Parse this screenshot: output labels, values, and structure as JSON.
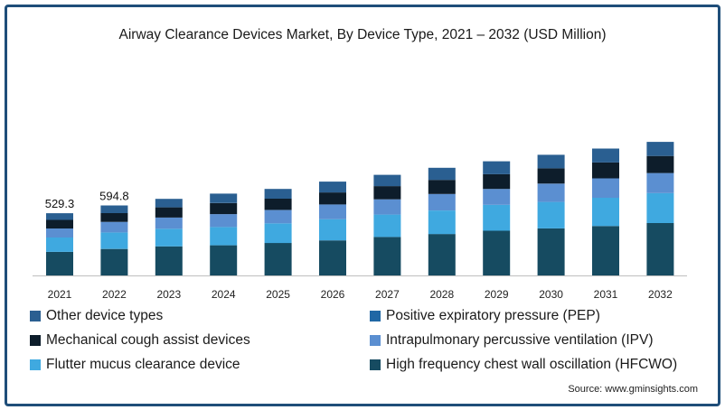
{
  "chart_data": {
    "type": "bar",
    "stacked": true,
    "title": "Airway Clearance Devices Market, By Device Type, 2021 – 2032 (USD Million)",
    "xlabel": "",
    "ylabel": "",
    "categories": [
      "2021",
      "2022",
      "2023",
      "2024",
      "2025",
      "2026",
      "2027",
      "2028",
      "2029",
      "2030",
      "2031",
      "2032"
    ],
    "totals_labels": [
      "529.3",
      "594.8"
    ],
    "ylim": [
      0,
      1650
    ],
    "legend_position": "bottom",
    "grid": false,
    "series": [
      {
        "name": "High frequency chest wall oscillation (HFCWO)",
        "color": "#164b61",
        "values": [
          200,
          225,
          247,
          256,
          276,
          298,
          327,
          352,
          380,
          400,
          420,
          445
        ]
      },
      {
        "name": "Flutter mucus clearance device",
        "color": "#3fa9e0",
        "values": [
          122,
          140,
          150,
          155,
          167,
          180,
          190,
          200,
          220,
          225,
          240,
          255
        ]
      },
      {
        "name": "Intrapulmonary percussive ventilation (IPV)",
        "color": "#5b8fd1",
        "values": [
          77,
          90,
          95,
          110,
          113,
          125,
          130,
          140,
          135,
          155,
          165,
          170
        ]
      },
      {
        "name": "Mechanical cough assist devices",
        "color": "#0d1d2b",
        "values": [
          73,
          75,
          87,
          94,
          96,
          102,
          112,
          120,
          125,
          130,
          135,
          145
        ]
      },
      {
        "name": "Positive expiratory pressure (PEP)",
        "color": "#2067a5",
        "values": [
          0,
          0,
          0,
          0,
          0,
          0,
          0,
          0,
          0,
          0,
          0,
          0
        ]
      },
      {
        "name": "Other device types",
        "color": "#2a5f91",
        "values": [
          57,
          65,
          72,
          80,
          83,
          92,
          96,
          103,
          110,
          115,
          118,
          120
        ]
      }
    ]
  },
  "legend": {
    "items": [
      {
        "label": "Other device types",
        "color": "#2a5f91"
      },
      {
        "label": "Positive expiratory pressure (PEP)",
        "color": "#2067a5"
      },
      {
        "label": "Mechanical cough assist devices",
        "color": "#0d1d2b"
      },
      {
        "label": "Intrapulmonary percussive ventilation (IPV)",
        "color": "#5b8fd1"
      },
      {
        "label": "Flutter mucus clearance device",
        "color": "#3fa9e0"
      },
      {
        "label": "High frequency chest wall oscillation (HFCWO)",
        "color": "#164b61"
      }
    ]
  },
  "source": "Source: www.gminsights.com"
}
